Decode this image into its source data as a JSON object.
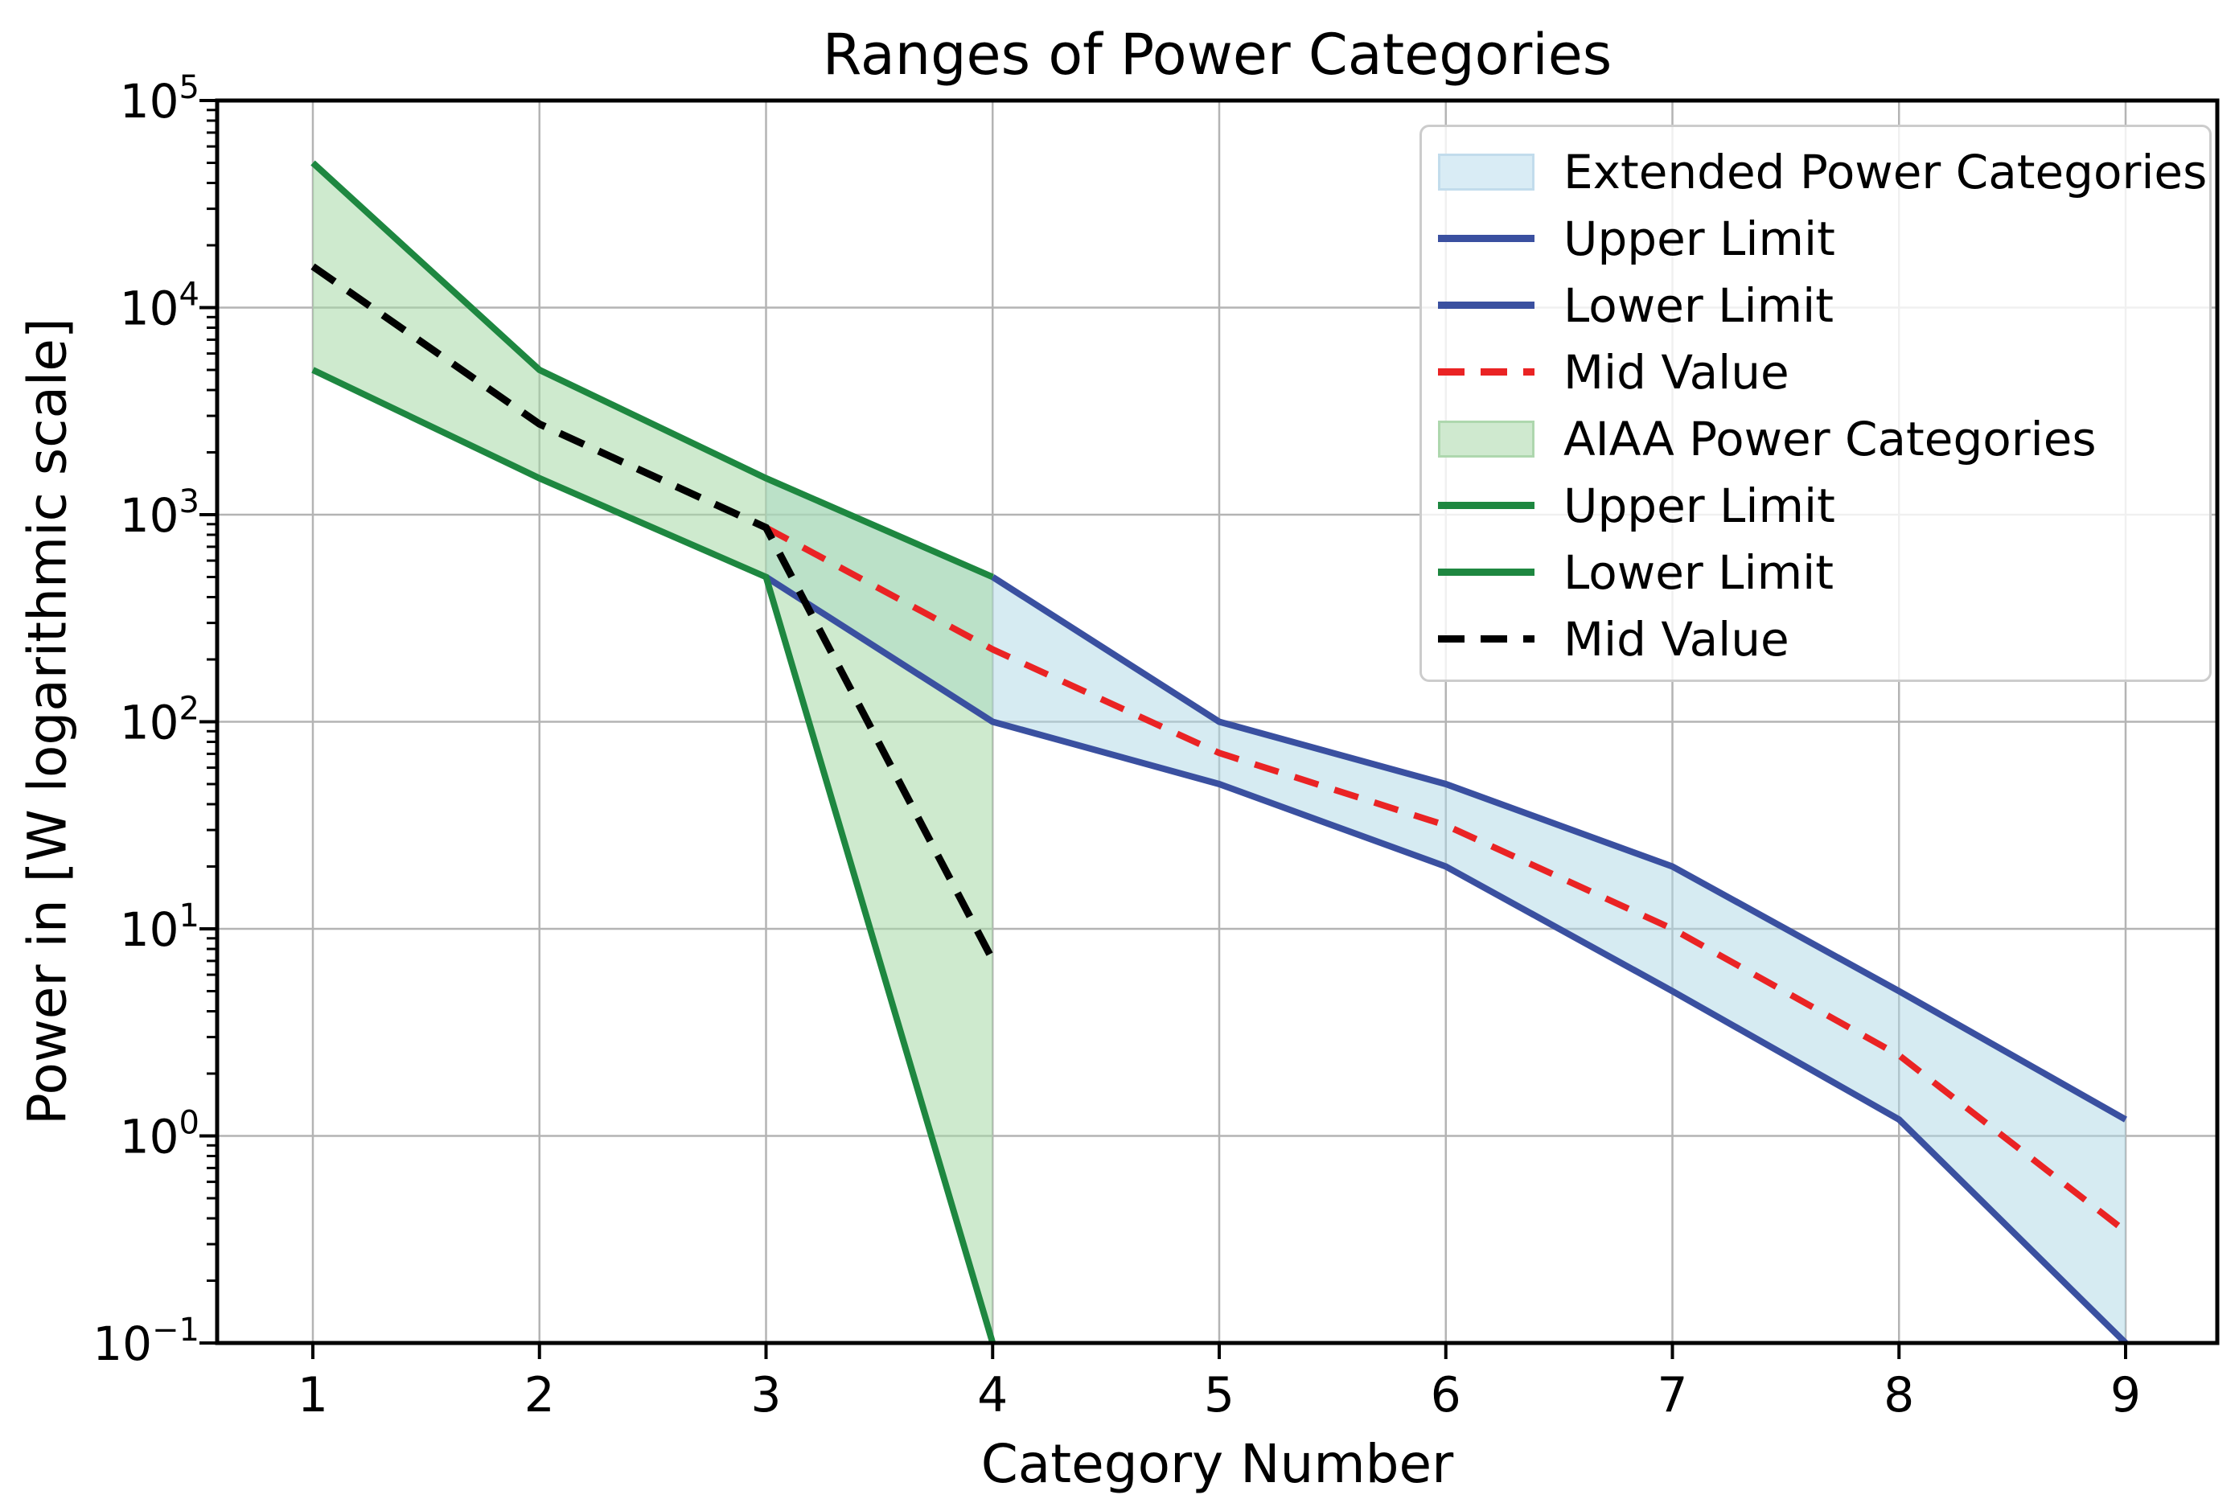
{
  "title": "Ranges of Power Categories",
  "axes": {
    "xlabel": "Category Number",
    "ylabel": "Power in [W logarithmic scale]",
    "x_tick_labels": [
      "1",
      "2",
      "3",
      "4",
      "5",
      "6",
      "7",
      "8",
      "9"
    ],
    "y_ticks": [
      {
        "base": "10",
        "exp": "5",
        "value": 100000
      },
      {
        "base": "10",
        "exp": "4",
        "value": 10000
      },
      {
        "base": "10",
        "exp": "3",
        "value": 1000
      },
      {
        "base": "10",
        "exp": "2",
        "value": 100
      },
      {
        "base": "10",
        "exp": "1",
        "value": 10
      },
      {
        "base": "10",
        "exp": "0",
        "value": 1
      },
      {
        "base": "10",
        "exp": "−1",
        "value": 0.1
      }
    ],
    "grid": true,
    "yscale": "log"
  },
  "legend": {
    "items": [
      {
        "label": "Extended Power Categories",
        "swatch": "fill-blue"
      },
      {
        "label": "Upper Limit",
        "swatch": "line-blue"
      },
      {
        "label": "Lower Limit",
        "swatch": "line-blue"
      },
      {
        "label": "Mid Value",
        "swatch": "dash-red"
      },
      {
        "label": "AIAA Power Categories",
        "swatch": "fill-green"
      },
      {
        "label": "Upper Limit",
        "swatch": "line-green"
      },
      {
        "label": "Lower Limit",
        "swatch": "line-green"
      },
      {
        "label": "Mid Value",
        "swatch": "dash-black"
      }
    ]
  },
  "colors": {
    "blue_line": "#3a50a0",
    "green_line": "#1e8740",
    "red_dash": "#ea2324",
    "black_dash": "#000000",
    "blue_fill_rgba": "rgba(173,216,230,0.5)",
    "green_fill_rgba": "rgba(165,217,165,0.55)",
    "blue_fill_swatch": "#d9ecf5",
    "blue_fill_swatch_border": "#c2dcec",
    "green_fill_swatch": "#cfe9cf",
    "green_fill_swatch_border": "#aed7ae",
    "grid": "#b4b4b4",
    "spine": "#000000",
    "legend_border": "#cccccc"
  },
  "chart_data": {
    "type": "area",
    "title": "Ranges of Power Categories",
    "xlabel": "Category Number",
    "ylabel": "Power in [W logarithmic scale]",
    "yscale": "log",
    "xlim": [
      0.58,
      9.4
    ],
    "ylim": [
      0.1,
      100000
    ],
    "x_ticks": [
      1,
      2,
      3,
      4,
      5,
      6,
      7,
      8,
      9
    ],
    "series": [
      {
        "name": "Extended Power Categories",
        "kind": "band",
        "x": [
          3,
          4,
          5,
          6,
          7,
          8,
          9
        ],
        "upper": [
          1500,
          500,
          100,
          50,
          20,
          5,
          1.2
        ],
        "lower": [
          500,
          100,
          50,
          20,
          5,
          1.2,
          0.1
        ],
        "upper_line_x": [
          4,
          5,
          6,
          7,
          8,
          9
        ],
        "upper_line_values": [
          500,
          100,
          50,
          20,
          5,
          1.2
        ]
      },
      {
        "name": "Extended Mid Value",
        "kind": "dashed-line",
        "x": [
          3,
          4,
          5,
          6,
          7,
          8,
          9
        ],
        "values": [
          866,
          223.6,
          70.7,
          31.6,
          10,
          2.45,
          0.346
        ]
      },
      {
        "name": "AIAA Power Categories",
        "kind": "band",
        "x": [
          1,
          2,
          3,
          4
        ],
        "upper": [
          50000,
          5000,
          1500,
          500
        ],
        "lower": [
          5000,
          1500,
          500,
          0.1
        ]
      },
      {
        "name": "AIAA Mid Value",
        "kind": "dashed-line",
        "x": [
          1,
          2,
          3,
          4
        ],
        "values": [
          15811,
          2739,
          866,
          7.07
        ]
      }
    ],
    "legend_position": "upper right"
  }
}
